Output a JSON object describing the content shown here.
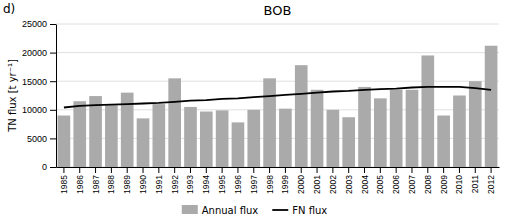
{
  "chart_data": {
    "type": "bar",
    "title": "BOB",
    "annotations": [
      "d)"
    ],
    "y_label": "TN flux [t yr⁻¹]",
    "categories": [
      "1985",
      "1986",
      "1987",
      "1988",
      "1989",
      "1990",
      "1991",
      "1992",
      "1993",
      "1994",
      "1995",
      "1996",
      "1997",
      "1998",
      "1999",
      "2000",
      "2001",
      "2002",
      "2003",
      "2004",
      "2005",
      "2006",
      "2007",
      "2008",
      "2009",
      "2010",
      "2011",
      "2012"
    ],
    "series": [
      {
        "name": "Annual flux",
        "type": "bar",
        "color": "#aaaaaa",
        "values": [
          9000,
          11500,
          12400,
          10800,
          13000,
          8500,
          11000,
          15500,
          10500,
          9700,
          9900,
          7800,
          10000,
          15500,
          10200,
          17800,
          13500,
          10000,
          8700,
          14000,
          12000,
          13500,
          13500,
          19500,
          9000,
          12500,
          15000,
          21200
        ]
      },
      {
        "name": "FN flux",
        "type": "line",
        "color": "#000000",
        "values": [
          10400,
          10700,
          10800,
          10900,
          11000,
          11100,
          11200,
          11400,
          11600,
          11700,
          11900,
          12000,
          12200,
          12400,
          12600,
          12800,
          13000,
          13200,
          13300,
          13500,
          13600,
          13700,
          13900,
          14000,
          14000,
          14000,
          13800,
          13500
        ]
      }
    ],
    "ylim": [
      0,
      25000
    ],
    "yticks": [
      0,
      5000,
      10000,
      15000,
      20000,
      25000
    ],
    "grid": true,
    "legend": "bottom"
  }
}
